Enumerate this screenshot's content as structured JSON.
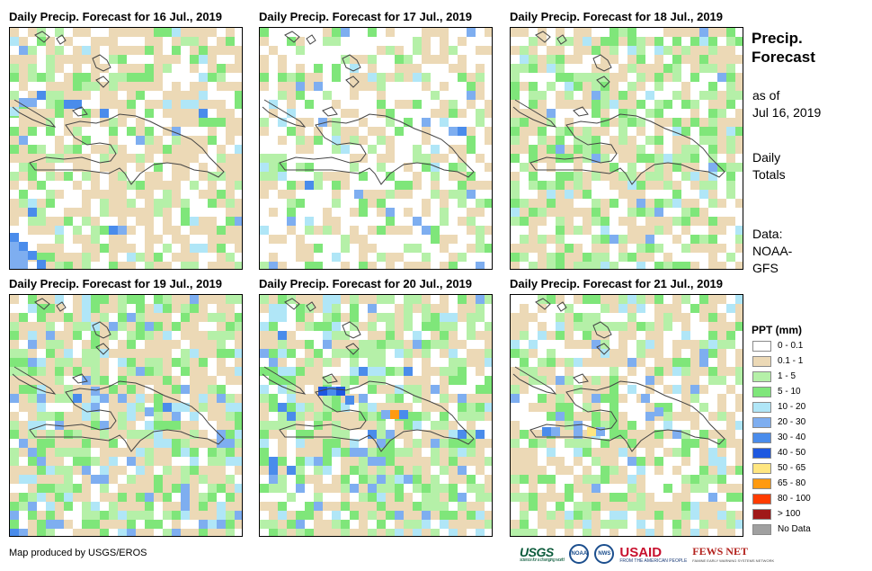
{
  "panels": [
    {
      "title": "Daily Precip. Forecast for 16 Jul., 2019",
      "date": "16 Jul., 2019"
    },
    {
      "title": "Daily Precip. Forecast for 17 Jul., 2019",
      "date": "17 Jul., 2019"
    },
    {
      "title": "Daily Precip. Forecast for 18 Jul., 2019",
      "date": "18 Jul., 2019"
    },
    {
      "title": "Daily Precip. Forecast for 19 Jul., 2019",
      "date": "19 Jul., 2019"
    },
    {
      "title": "Daily Precip. Forecast for 20 Jul., 2019",
      "date": "20 Jul., 2019"
    },
    {
      "title": "Daily Precip. Forecast for 21 Jul., 2019",
      "date": "21 Jul., 2019"
    }
  ],
  "sidebar": {
    "title_line1": "Precip.",
    "title_line2": "Forecast",
    "asof_line1": "as of",
    "asof_line2": "Jul 16, 2019",
    "totals_line1": "Daily",
    "totals_line2": "Totals",
    "data_line1": "Data:",
    "data_line2": "NOAA-",
    "data_line3": "GFS"
  },
  "legend": {
    "title": "PPT (mm)",
    "items": [
      {
        "label": "0 - 0.1",
        "color": "#ffffff"
      },
      {
        "label": "0.1 - 1",
        "color": "#ecd9b6"
      },
      {
        "label": "1 - 5",
        "color": "#b5f0a8"
      },
      {
        "label": "5 - 10",
        "color": "#7fe67a"
      },
      {
        "label": "10 - 20",
        "color": "#b0e6f7"
      },
      {
        "label": "20 - 30",
        "color": "#7eaef0"
      },
      {
        "label": "30 - 40",
        "color": "#4a8ceb"
      },
      {
        "label": "40 - 50",
        "color": "#1e58e0"
      },
      {
        "label": "50 - 65",
        "color": "#ffe680"
      },
      {
        "label": "65 - 80",
        "color": "#ff9a10"
      },
      {
        "label": "80 - 100",
        "color": "#ff3c00"
      },
      {
        "label": "> 100",
        "color": "#a01818"
      },
      {
        "label": "No Data",
        "color": "#a0a0a0"
      }
    ]
  },
  "footer": {
    "credit": "Map produced by USGS/EROS",
    "logo_usgs": "USGS",
    "logo_usgs_tag": "science for a changing world",
    "logo_noaa": "NOAA",
    "logo_nws": "NWS",
    "logo_usaid_a": "US",
    "logo_usaid_b": "AID",
    "logo_usaid_tag": "FROM THE AMERICAN PEOPLE",
    "logo_fews": "FEWS NET",
    "logo_fews_tag": "FAMINE EARLY WARNING SYSTEMS NETWORK"
  }
}
